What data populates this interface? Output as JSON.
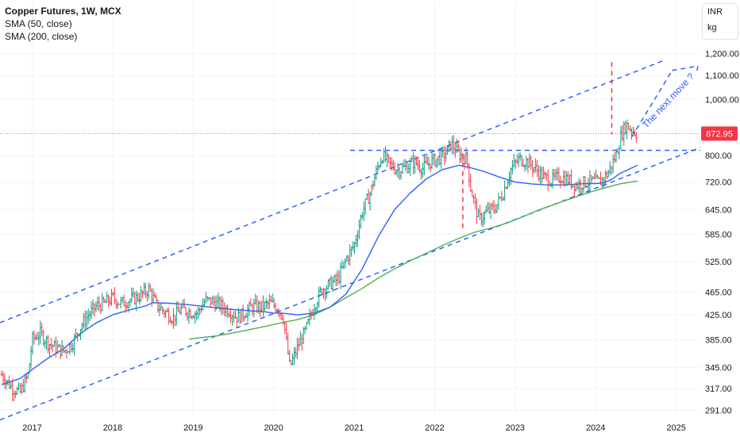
{
  "legend": {
    "title": "Copper Futures, 1W, MCX",
    "sma50": "SMA (50, close)",
    "sma200": "SMA (200, close)"
  },
  "units": {
    "currency": "INR",
    "weight": "kg"
  },
  "colors": {
    "up": "#089981",
    "down": "#f23645",
    "sma50": "#2962ff",
    "sma200": "#4caf50",
    "channel": "#2962ff",
    "lastPrice": "#f23645",
    "axis": "#131722"
  },
  "annotation": "The next move ?",
  "chart_data": {
    "type": "line",
    "scale": "log",
    "ylim": [
      285,
      1260
    ],
    "xlim": [
      2016.6,
      2025.3
    ],
    "y_ticks": [
      1200,
      1100,
      1000,
      800,
      720,
      645,
      585,
      525,
      465,
      425,
      385,
      345,
      317,
      291
    ],
    "y_tick_labels": [
      "1,200.00",
      "1,100.00",
      "1,000.00",
      "800.00",
      "720.00",
      "645.00",
      "585.00",
      "525.00",
      "465.00",
      "425.00",
      "385.00",
      "345.00",
      "317.00",
      "291.00"
    ],
    "x_ticks": [
      2017,
      2018,
      2019,
      2020,
      2021,
      2022,
      2023,
      2024,
      2025
    ],
    "x_tick_labels": [
      "2017",
      "2018",
      "2019",
      "2020",
      "2021",
      "2022",
      "2023",
      "2024",
      "2025"
    ],
    "last_price": 872.95,
    "last_price_label": "872.95",
    "series": [
      {
        "name": "Copper Futures",
        "points": [
          [
            2016.62,
            335
          ],
          [
            2016.75,
            318
          ],
          [
            2016.85,
            312
          ],
          [
            2016.95,
            335
          ],
          [
            2017.0,
            385
          ],
          [
            2017.1,
            395
          ],
          [
            2017.2,
            380
          ],
          [
            2017.3,
            372
          ],
          [
            2017.4,
            368
          ],
          [
            2017.5,
            380
          ],
          [
            2017.6,
            405
          ],
          [
            2017.7,
            425
          ],
          [
            2017.8,
            440
          ],
          [
            2017.9,
            445
          ],
          [
            2018.0,
            455
          ],
          [
            2018.1,
            445
          ],
          [
            2018.2,
            450
          ],
          [
            2018.3,
            455
          ],
          [
            2018.4,
            465
          ],
          [
            2018.45,
            470
          ],
          [
            2018.55,
            440
          ],
          [
            2018.65,
            430
          ],
          [
            2018.75,
            420
          ],
          [
            2018.85,
            435
          ],
          [
            2018.95,
            430
          ],
          [
            2019.05,
            428
          ],
          [
            2019.15,
            450
          ],
          [
            2019.25,
            448
          ],
          [
            2019.35,
            440
          ],
          [
            2019.45,
            432
          ],
          [
            2019.55,
            420
          ],
          [
            2019.65,
            430
          ],
          [
            2019.75,
            440
          ],
          [
            2019.85,
            438
          ],
          [
            2019.95,
            445
          ],
          [
            2020.05,
            438
          ],
          [
            2020.12,
            420
          ],
          [
            2020.2,
            345
          ],
          [
            2020.3,
            375
          ],
          [
            2020.4,
            400
          ],
          [
            2020.5,
            440
          ],
          [
            2020.6,
            470
          ],
          [
            2020.7,
            480
          ],
          [
            2020.8,
            490
          ],
          [
            2020.9,
            530
          ],
          [
            2021.0,
            560
          ],
          [
            2021.1,
            640
          ],
          [
            2021.2,
            690
          ],
          [
            2021.3,
            770
          ],
          [
            2021.35,
            800
          ],
          [
            2021.45,
            770
          ],
          [
            2021.55,
            755
          ],
          [
            2021.65,
            765
          ],
          [
            2021.75,
            780
          ],
          [
            2021.85,
            760
          ],
          [
            2021.95,
            780
          ],
          [
            2022.05,
            790
          ],
          [
            2022.15,
            810
          ],
          [
            2022.2,
            840
          ],
          [
            2022.3,
            805
          ],
          [
            2022.4,
            790
          ],
          [
            2022.45,
            700
          ],
          [
            2022.55,
            620
          ],
          [
            2022.65,
            640
          ],
          [
            2022.75,
            650
          ],
          [
            2022.85,
            690
          ],
          [
            2022.95,
            760
          ],
          [
            2023.05,
            790
          ],
          [
            2023.15,
            780
          ],
          [
            2023.25,
            760
          ],
          [
            2023.35,
            735
          ],
          [
            2023.45,
            725
          ],
          [
            2023.55,
            735
          ],
          [
            2023.65,
            728
          ],
          [
            2023.75,
            712
          ],
          [
            2023.85,
            718
          ],
          [
            2023.95,
            722
          ],
          [
            2024.05,
            720
          ],
          [
            2024.15,
            745
          ],
          [
            2024.25,
            800
          ],
          [
            2024.32,
            870
          ],
          [
            2024.38,
            905
          ],
          [
            2024.45,
            885
          ],
          [
            2024.52,
            872.95
          ]
        ]
      },
      {
        "name": "SMA (50, close)",
        "points": [
          [
            2016.62,
            322
          ],
          [
            2016.85,
            330
          ],
          [
            2017.0,
            342
          ],
          [
            2017.2,
            358
          ],
          [
            2017.4,
            372
          ],
          [
            2017.6,
            395
          ],
          [
            2017.8,
            412
          ],
          [
            2018.0,
            425
          ],
          [
            2018.2,
            433
          ],
          [
            2018.4,
            440
          ],
          [
            2018.5,
            446
          ],
          [
            2018.7,
            445
          ],
          [
            2018.9,
            443
          ],
          [
            2019.1,
            440
          ],
          [
            2019.3,
            437
          ],
          [
            2019.5,
            434
          ],
          [
            2019.7,
            432
          ],
          [
            2019.9,
            430
          ],
          [
            2020.0,
            428
          ],
          [
            2020.1,
            428
          ],
          [
            2020.3,
            425
          ],
          [
            2020.5,
            428
          ],
          [
            2020.7,
            438
          ],
          [
            2020.9,
            462
          ],
          [
            2021.1,
            510
          ],
          [
            2021.3,
            580
          ],
          [
            2021.5,
            645
          ],
          [
            2021.7,
            690
          ],
          [
            2021.9,
            730
          ],
          [
            2022.1,
            757
          ],
          [
            2022.3,
            770
          ],
          [
            2022.45,
            762
          ],
          [
            2022.6,
            752
          ],
          [
            2022.8,
            735
          ],
          [
            2023.0,
            720
          ],
          [
            2023.2,
            715
          ],
          [
            2023.4,
            712
          ],
          [
            2023.6,
            712
          ],
          [
            2023.8,
            715
          ],
          [
            2023.9,
            716
          ],
          [
            2024.0,
            716
          ],
          [
            2024.1,
            718
          ],
          [
            2024.2,
            728
          ],
          [
            2024.3,
            745
          ],
          [
            2024.52,
            770
          ]
        ]
      },
      {
        "name": "SMA (200, close)",
        "points": [
          [
            2018.95,
            386
          ],
          [
            2019.3,
            391
          ],
          [
            2019.6,
            398
          ],
          [
            2019.9,
            406
          ],
          [
            2020.1,
            412
          ],
          [
            2020.3,
            417
          ],
          [
            2020.5,
            425
          ],
          [
            2020.7,
            438
          ],
          [
            2020.9,
            455
          ],
          [
            2021.1,
            472
          ],
          [
            2021.3,
            492
          ],
          [
            2021.5,
            510
          ],
          [
            2021.7,
            527
          ],
          [
            2021.9,
            543
          ],
          [
            2022.1,
            560
          ],
          [
            2022.3,
            576
          ],
          [
            2022.5,
            590
          ],
          [
            2022.7,
            600
          ],
          [
            2022.9,
            612
          ],
          [
            2023.1,
            628
          ],
          [
            2023.3,
            645
          ],
          [
            2023.5,
            660
          ],
          [
            2023.7,
            675
          ],
          [
            2023.9,
            690
          ],
          [
            2024.1,
            703
          ],
          [
            2024.3,
            715
          ],
          [
            2024.52,
            723
          ]
        ]
      }
    ],
    "trendlines": [
      {
        "name": "upper-channel",
        "from": [
          2016.6,
          412
        ],
        "to": [
          2024.85,
          1168
        ]
      },
      {
        "name": "lower-channel",
        "from": [
          2016.6,
          280
        ],
        "to": [
          2025.3,
          826
        ]
      },
      {
        "name": "horizontal-resistance",
        "from": [
          2020.95,
          817
        ],
        "to": [
          2025.3,
          817
        ]
      },
      {
        "name": "move-projection-1",
        "from": [
          2024.45,
          862
        ],
        "to": [
          2024.95,
          1122
        ]
      },
      {
        "name": "move-projection-2",
        "from": [
          2024.95,
          1122
        ],
        "to": [
          2025.27,
          1142
        ]
      },
      {
        "name": "move-projection-3",
        "from": [
          2025.27,
          1142
        ],
        "to": [
          2025.25,
          1105
        ]
      },
      {
        "name": "spike-marker-2022",
        "from": [
          2022.35,
          600
        ],
        "to": [
          2022.35,
          812
        ]
      },
      {
        "name": "spike-marker-2024",
        "from": [
          2024.2,
          1160
        ],
        "to": [
          2024.2,
          870
        ]
      }
    ]
  }
}
